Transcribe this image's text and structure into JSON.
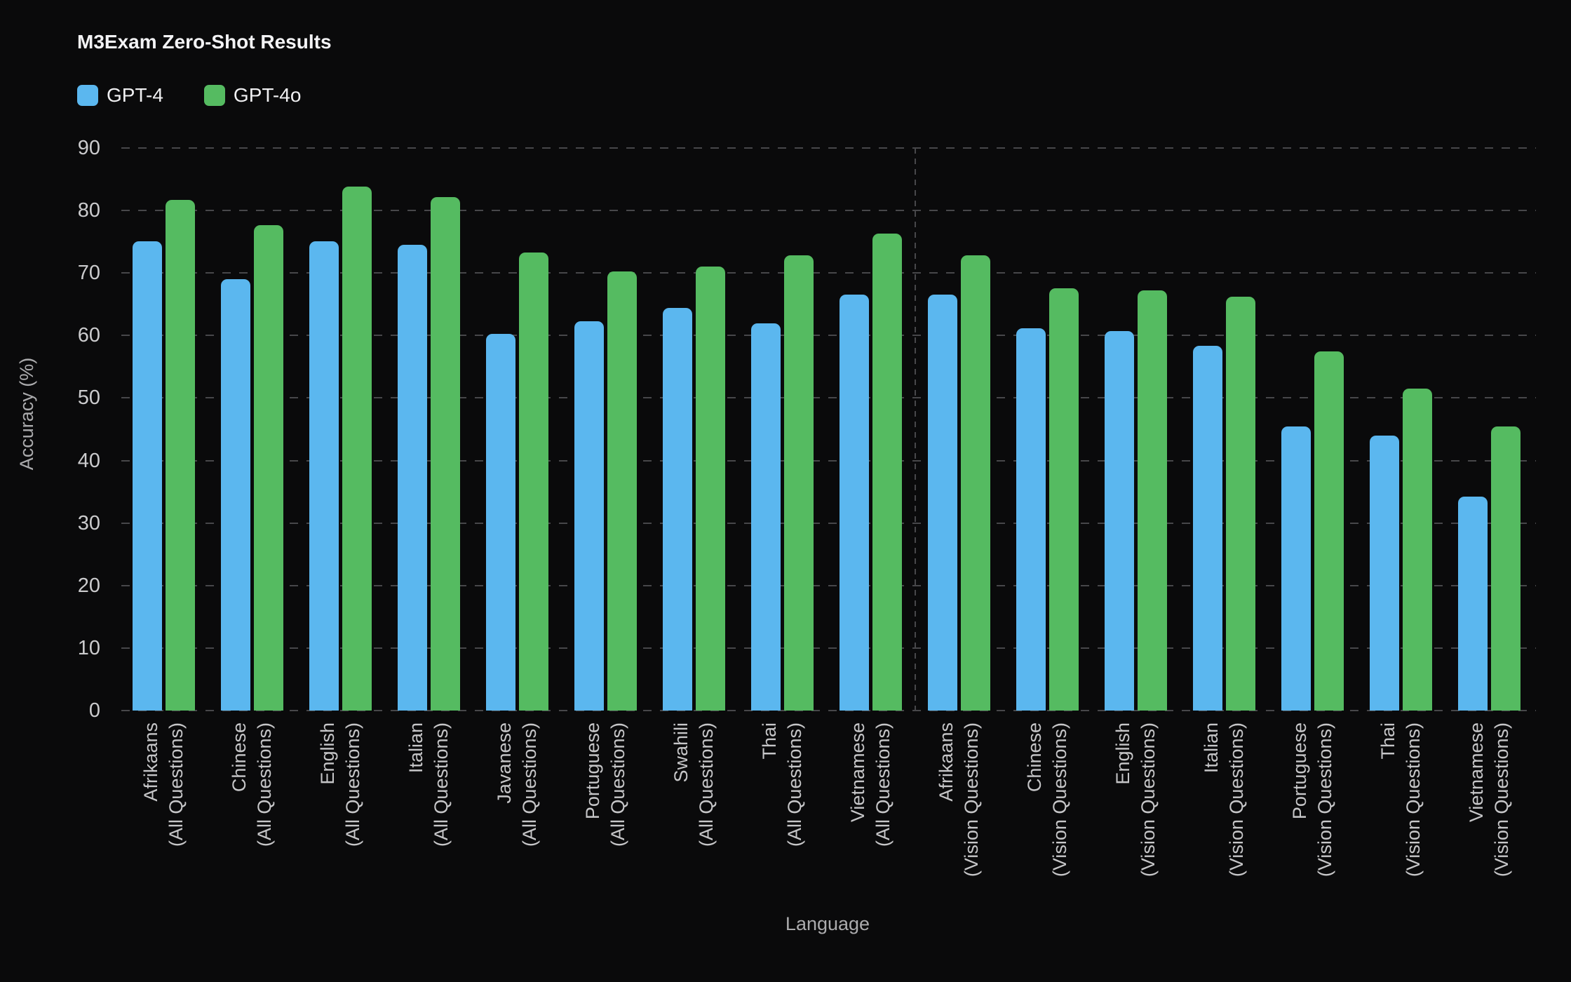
{
  "title": "M3Exam Zero-Shot Results",
  "theme": {
    "background": "#0a0a0b",
    "grid_color": "#47474a",
    "title_color": "#f3f3f5",
    "tick_label_color": "#cbcbcd",
    "axis_title_color": "#ababad"
  },
  "chart_data": {
    "type": "bar",
    "title": "M3Exam Zero-Shot Results",
    "xlabel": "Language",
    "ylabel": "Accuracy (%)",
    "ylim": [
      0,
      90
    ],
    "ytick_interval": 10,
    "yticks": [
      0,
      10,
      20,
      30,
      40,
      50,
      60,
      70,
      80,
      90
    ],
    "grid": "horizontal-dashed",
    "legend_position": "top-left",
    "group_separator_after_index": 8,
    "categories": [
      {
        "label_lines": [
          "Afrikaans",
          "(All Questions)"
        ]
      },
      {
        "label_lines": [
          "Chinese",
          "(All Questions)"
        ]
      },
      {
        "label_lines": [
          "English",
          "(All Questions)"
        ]
      },
      {
        "label_lines": [
          "Italian",
          "(All Questions)"
        ]
      },
      {
        "label_lines": [
          "Javanese",
          "(All Questions)"
        ]
      },
      {
        "label_lines": [
          "Portuguese",
          "(All Questions)"
        ]
      },
      {
        "label_lines": [
          "Swahili",
          "(All Questions)"
        ]
      },
      {
        "label_lines": [
          "Thai",
          "(All Questions)"
        ]
      },
      {
        "label_lines": [
          "Vietnamese",
          "(All Questions)"
        ]
      },
      {
        "label_lines": [
          "Afrikaans",
          "(Vision Questions)"
        ]
      },
      {
        "label_lines": [
          "Chinese",
          "(Vision Questions)"
        ]
      },
      {
        "label_lines": [
          "English",
          "(Vision Questions)"
        ]
      },
      {
        "label_lines": [
          "Italian",
          "(Vision Questions)"
        ]
      },
      {
        "label_lines": [
          "Portuguese",
          "(Vision Questions)"
        ]
      },
      {
        "label_lines": [
          "Thai",
          "(Vision Questions)"
        ]
      },
      {
        "label_lines": [
          "Vietnamese",
          "(Vision Questions)"
        ]
      }
    ],
    "series": [
      {
        "name": "GPT-4",
        "color": "#5bb7ef",
        "values": [
          75.1,
          69.0,
          75.1,
          74.5,
          60.3,
          62.3,
          64.4,
          62.0,
          66.5,
          66.5,
          61.2,
          60.7,
          58.4,
          45.5,
          44.0,
          34.2
        ]
      },
      {
        "name": "GPT-4o",
        "color": "#55bb61",
        "values": [
          81.7,
          77.7,
          83.8,
          82.2,
          73.3,
          70.2,
          71.0,
          72.8,
          76.3,
          72.8,
          67.6,
          67.2,
          66.2,
          57.5,
          51.5,
          45.4
        ]
      }
    ]
  }
}
